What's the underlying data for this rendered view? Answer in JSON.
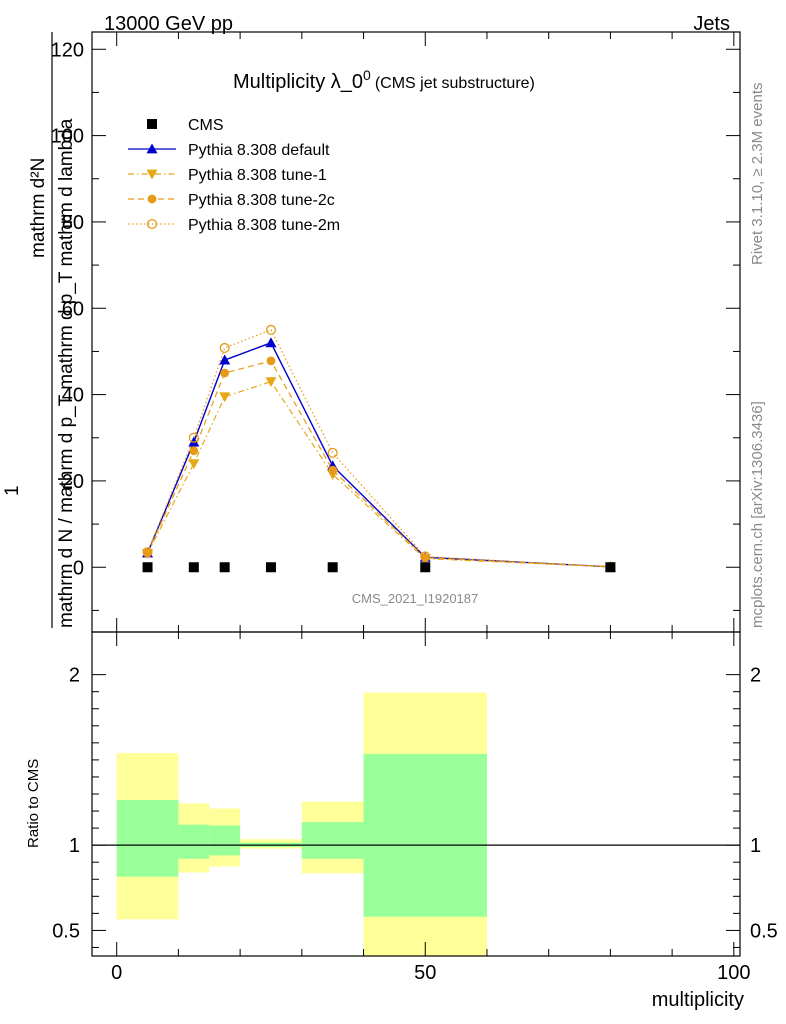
{
  "header": {
    "left": "13000 GeV pp",
    "right": "Jets"
  },
  "side_labels": {
    "rivet": "Rivet 3.1.10, ≥ 2.3M events",
    "mcplots": "mcplots.cern.ch [arXiv:1306.3436]"
  },
  "chart_data": [
    {
      "type": "line",
      "title_main": "Multiplicity λ_0",
      "title_sup": "0",
      "title_sub": "(CMS jet substructure)",
      "watermark": "CMS_2021_I1920187",
      "ylabel_numerator": "mathrm d²N",
      "ylabel_denominator": "mathrm d N / mathrm d p_T mathrm d p_T mathrm d lambda",
      "ylabel_prefix": "1",
      "ylim": [
        -15,
        124
      ],
      "yticks": [
        0,
        20,
        40,
        60,
        80,
        100,
        120
      ],
      "xlim": [
        -4,
        101
      ],
      "x_edges": [
        0,
        10,
        15,
        20,
        30,
        40,
        60,
        100
      ],
      "grid": false,
      "legend_position": "top-left",
      "series": [
        {
          "name": "CMS",
          "style": "data",
          "color": "#000000",
          "x": [
            5,
            12.5,
            17.5,
            25,
            35,
            50,
            80
          ],
          "y": [
            0,
            0,
            0,
            0,
            0,
            0,
            0
          ]
        },
        {
          "name": "Pythia 8.308 default",
          "style": "solid-triangle-up",
          "color": "#0000cc",
          "x": [
            5,
            12.5,
            17.5,
            25,
            35,
            50,
            80
          ],
          "y": [
            3.3,
            29.0,
            48.0,
            52.0,
            23.5,
            2.3,
            0.1
          ]
        },
        {
          "name": "Pythia 8.308 tune-1",
          "style": "dashdot-triangle-down",
          "color": "#e6a817",
          "x": [
            5,
            12.5,
            17.5,
            25,
            35,
            50,
            80
          ],
          "y": [
            3.2,
            24.0,
            39.5,
            43.0,
            21.5,
            2.0,
            0.1
          ]
        },
        {
          "name": "Pythia 8.308 tune-2c",
          "style": "dashed-circle",
          "color": "#e69a17",
          "x": [
            5,
            12.5,
            17.5,
            25,
            35,
            50,
            80
          ],
          "y": [
            3.3,
            27.0,
            45.0,
            47.8,
            22.5,
            2.2,
            0.1
          ]
        },
        {
          "name": "Pythia 8.308 tune-2m",
          "style": "dotted-open-circle",
          "color": "#e69a17",
          "x": [
            5,
            12.5,
            17.5,
            25,
            35,
            50,
            80
          ],
          "y": [
            3.5,
            30.0,
            50.8,
            55.0,
            26.5,
            2.5,
            0.1
          ]
        }
      ]
    },
    {
      "type": "area",
      "ylabel": "Ratio to CMS",
      "xlabel": "multiplicity",
      "ylim": [
        0.35,
        2.25
      ],
      "yticks": [
        0.5,
        1,
        2
      ],
      "ytick_labels": [
        "0.5",
        "1",
        "2"
      ],
      "xticks": [
        0,
        50,
        100
      ],
      "xtick_labels": [
        "0",
        "50",
        "100"
      ],
      "reference_line": 1,
      "bands": [
        {
          "x0": 0,
          "x1": 10,
          "outer": [
            0.565,
            1.54
          ],
          "inner": [
            0.815,
            1.265
          ]
        },
        {
          "x0": 10,
          "x1": 15,
          "outer": [
            0.84,
            1.245
          ],
          "inner": [
            0.92,
            1.12
          ]
        },
        {
          "x0": 15,
          "x1": 20,
          "outer": [
            0.875,
            1.215
          ],
          "inner": [
            0.94,
            1.115
          ]
        },
        {
          "x0": 20,
          "x1": 30,
          "outer": [
            0.98,
            1.035
          ],
          "inner": [
            0.99,
            1.015
          ]
        },
        {
          "x0": 30,
          "x1": 40,
          "outer": [
            0.835,
            1.255
          ],
          "inner": [
            0.92,
            1.135
          ]
        },
        {
          "x0": 40,
          "x1": 60,
          "outer": [
            0.35,
            1.895
          ],
          "inner": [
            0.58,
            1.535
          ]
        }
      ],
      "band_colors": {
        "outer": "#ffff99",
        "inner": "#99ff99"
      }
    }
  ]
}
